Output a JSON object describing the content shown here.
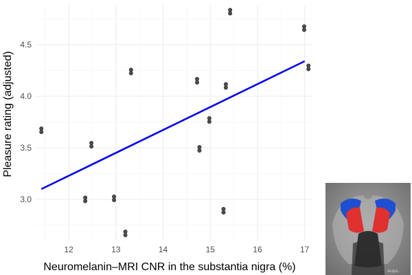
{
  "chart_data": {
    "type": "scatter",
    "xlabel": "Neuromelanin–MRI CNR in the substantia nigra (%)",
    "ylabel": "Pleasure rating (adjusted)",
    "xlim": [
      11.3,
      17.15
    ],
    "ylim": [
      2.6,
      4.88
    ],
    "xticks": [
      "12",
      "13",
      "14",
      "15",
      "16",
      "17"
    ],
    "yticks": [
      "3.0",
      "3.5",
      "4.0",
      "4.5"
    ],
    "xtick_values": [
      12,
      13,
      14,
      15,
      16,
      17
    ],
    "ytick_values": [
      3.0,
      3.5,
      4.0,
      4.5
    ],
    "grid": true,
    "series": [
      {
        "x": [
          11.42,
          12.35,
          12.48,
          12.96,
          13.2,
          13.32,
          14.72,
          14.77,
          14.98,
          15.28,
          15.33,
          15.42,
          16.99,
          17.08
        ],
        "y": [
          3.67,
          3.0,
          3.53,
          3.01,
          2.67,
          4.24,
          4.15,
          3.49,
          3.77,
          2.89,
          4.1,
          4.82,
          4.66,
          4.28
        ],
        "color": "#4d4d4d"
      }
    ],
    "fit_line": {
      "x": [
        11.42,
        17.0
      ],
      "y": [
        3.1,
        4.34
      ],
      "color": "#0000ee"
    }
  },
  "inset": {
    "watermark": "Acqui..."
  }
}
